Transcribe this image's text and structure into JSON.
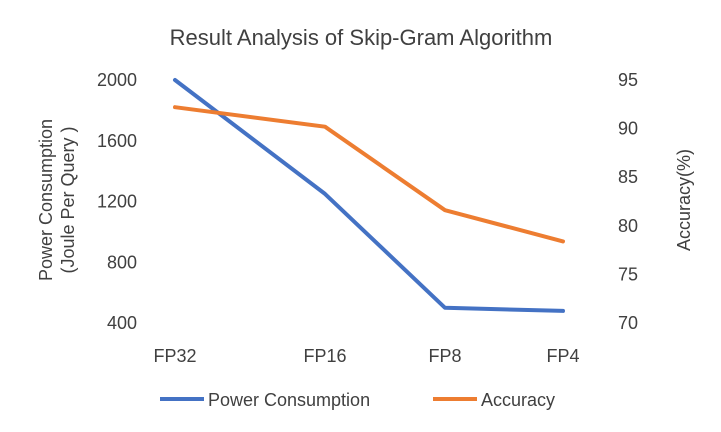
{
  "chart_data": {
    "type": "line",
    "title": "Result Analysis of Skip-Gram Algorithm",
    "categories": [
      "FP32",
      "FP16",
      "FP8",
      "FP4"
    ],
    "y_left": {
      "label_line1": "Power Consumption",
      "label_line2": "(Joule Per Query )",
      "ticks": [
        2000,
        1600,
        1200,
        800,
        400
      ],
      "ylim": [
        400,
        2000
      ]
    },
    "y_right": {
      "label": "Accuracy(%)",
      "ticks": [
        95,
        90,
        85,
        80,
        75,
        70
      ],
      "ylim": [
        70,
        95
      ]
    },
    "series": [
      {
        "name": "Power Consumption",
        "axis": "left",
        "color": "#4472C4",
        "values": [
          2000,
          1250,
          500,
          480
        ]
      },
      {
        "name": "Accuracy",
        "axis": "right",
        "color": "#ED7D31",
        "values": [
          92.2,
          90.2,
          81.6,
          78.4
        ]
      }
    ],
    "grid": false,
    "legend_position": "bottom"
  }
}
